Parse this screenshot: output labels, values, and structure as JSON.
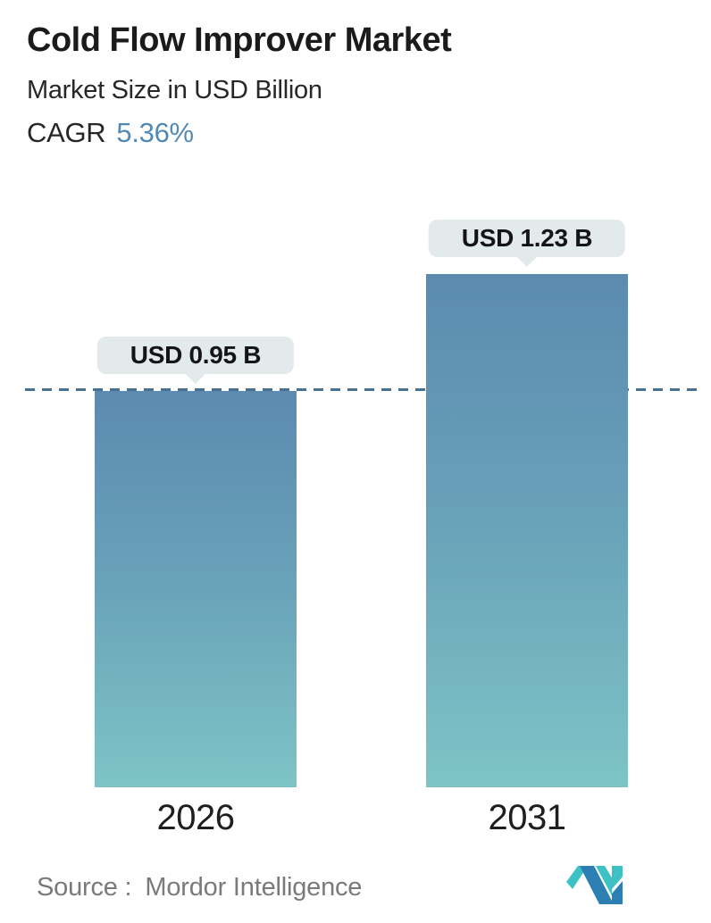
{
  "header": {
    "title": "Cold Flow Improver Market",
    "subtitle": "Market Size in USD Billion",
    "cagr_label": "CAGR",
    "cagr_value": "5.36%"
  },
  "chart_data": {
    "type": "bar",
    "title": "Cold Flow Improver Market",
    "subtitle": "Market Size in USD Billion",
    "unit": "USD Billion",
    "cagr_percent": 5.36,
    "categories": [
      "2026",
      "2031"
    ],
    "values": [
      0.95,
      1.23
    ],
    "value_labels": [
      "USD 0.95 B",
      "USD 1.23 B"
    ],
    "ylim": [
      0,
      1.46
    ],
    "grid": false,
    "legend": false,
    "reference_line": {
      "style": "dashed",
      "value": 0.95
    },
    "colors": {
      "bar_gradient_top": "#5c8ab0",
      "bar_gradient_bottom": "#7ec4c6",
      "bubble_bg": "#e3eaec",
      "dashed_line": "#46718f",
      "accent_blue": "#538ab5",
      "logo_blue": "#2d7eb3",
      "logo_teal": "#3ec1c5"
    }
  },
  "footer": {
    "source_label": "Source :",
    "source_name": "Mordor Intelligence"
  }
}
